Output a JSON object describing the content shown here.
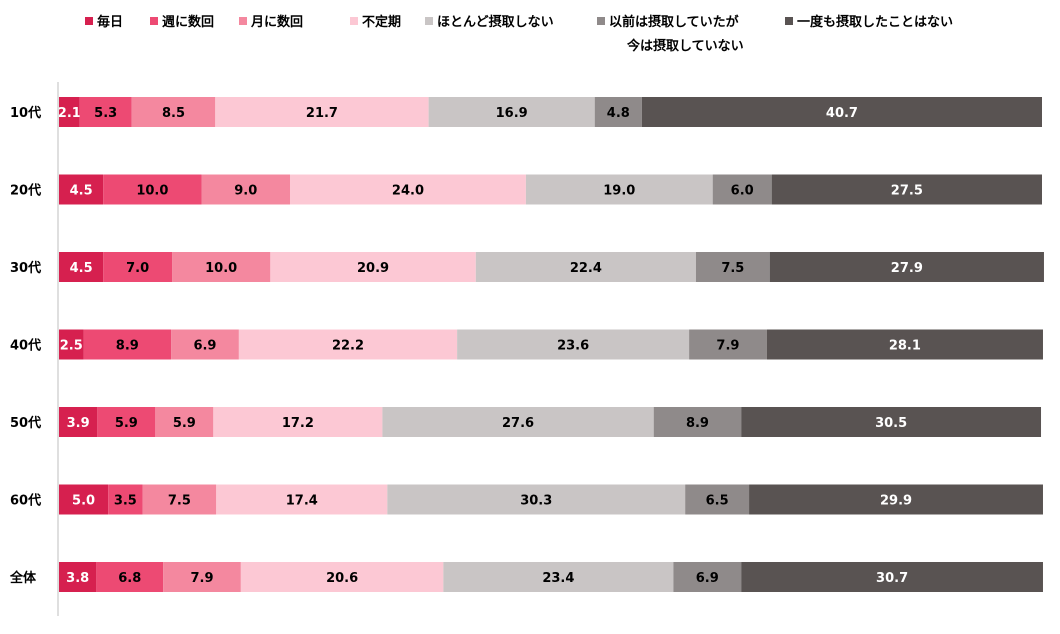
{
  "chart_data": {
    "type": "bar",
    "orientation": "horizontal",
    "stacked": true,
    "title": "",
    "xlabel": "",
    "ylabel": "",
    "xlim": [
      0,
      100
    ],
    "legend_position": "top",
    "categories": [
      "10代",
      "20代",
      "30代",
      "40代",
      "50代",
      "60代",
      "全体"
    ],
    "series": [
      {
        "name": "毎日",
        "color": "#d6204f",
        "label_color": "#ffffff",
        "values": [
          2.1,
          4.5,
          4.5,
          2.5,
          3.9,
          5.0,
          3.8
        ]
      },
      {
        "name": "週に数回",
        "color": "#ed4a73",
        "label_color": "#000000",
        "values": [
          5.3,
          10.0,
          7.0,
          8.9,
          5.9,
          3.5,
          6.8
        ]
      },
      {
        "name": "月に数回",
        "color": "#f4889f",
        "label_color": "#000000",
        "values": [
          8.5,
          9.0,
          10.0,
          6.9,
          5.9,
          7.5,
          7.9
        ]
      },
      {
        "name": "不定期",
        "color": "#fcc8d4",
        "label_color": "#000000",
        "values": [
          21.7,
          24.0,
          20.9,
          22.2,
          17.2,
          17.4,
          20.6
        ]
      },
      {
        "name": "ほとんど摂取しない",
        "color": "#c9c5c5",
        "label_color": "#000000",
        "values": [
          16.9,
          19.0,
          22.4,
          23.6,
          27.6,
          30.3,
          23.4
        ]
      },
      {
        "name": "以前は摂取していたが\n今は摂取していない",
        "color": "#8f8a8a",
        "label_color": "#000000",
        "values": [
          4.8,
          6.0,
          7.5,
          7.9,
          8.9,
          6.5,
          6.9
        ]
      },
      {
        "name": "一度も摂取したことはない",
        "color": "#595352",
        "label_color": "#ffffff",
        "values": [
          40.7,
          27.5,
          27.9,
          28.1,
          30.5,
          29.9,
          30.7
        ]
      }
    ]
  }
}
